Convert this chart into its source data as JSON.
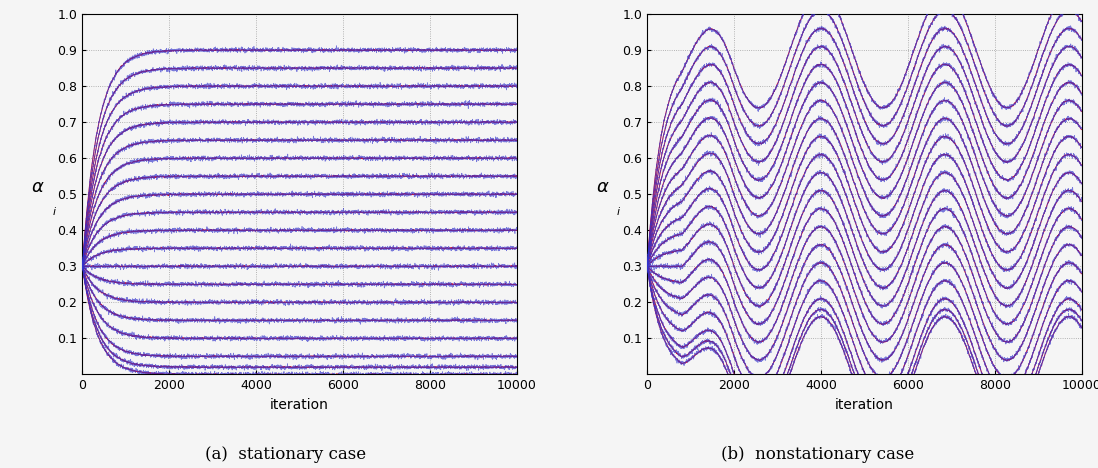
{
  "n_iterations": 10000,
  "n_coefficients": 20,
  "initial_value": 0.3,
  "stationary_targets": [
    0.9,
    0.85,
    0.8,
    0.75,
    0.7,
    0.65,
    0.6,
    0.55,
    0.5,
    0.45,
    0.4,
    0.35,
    0.3,
    0.25,
    0.2,
    0.15,
    0.1,
    0.05,
    0.02,
    0.0
  ],
  "noise_std_blue": 0.008,
  "noise_std_red": 0.003,
  "tau_rise": 350,
  "nonstat_amplitude": 0.16,
  "nonstat_freq_cycles": 3.5,
  "red_color": "#cc0022",
  "blue_color": "#3333cc",
  "background_color": "#f5f5f5",
  "grid_color": "#888888",
  "xlabel": "iteration",
  "ylabel_left": "α",
  "ylabel_sub_left": "i",
  "label_a": "(a)  stationary case",
  "label_b": "(b)  nonstationary case",
  "xlim": [
    0,
    10000
  ],
  "ylim": [
    0,
    1.0
  ],
  "yticks": [
    0.1,
    0.2,
    0.3,
    0.4,
    0.5,
    0.6,
    0.7,
    0.8,
    0.9,
    1.0
  ],
  "xticks": [
    0,
    2000,
    4000,
    6000,
    8000,
    10000
  ],
  "linewidth_red": 0.7,
  "linewidth_blue": 0.5,
  "figsize": [
    10.98,
    4.68
  ],
  "dpi": 100
}
